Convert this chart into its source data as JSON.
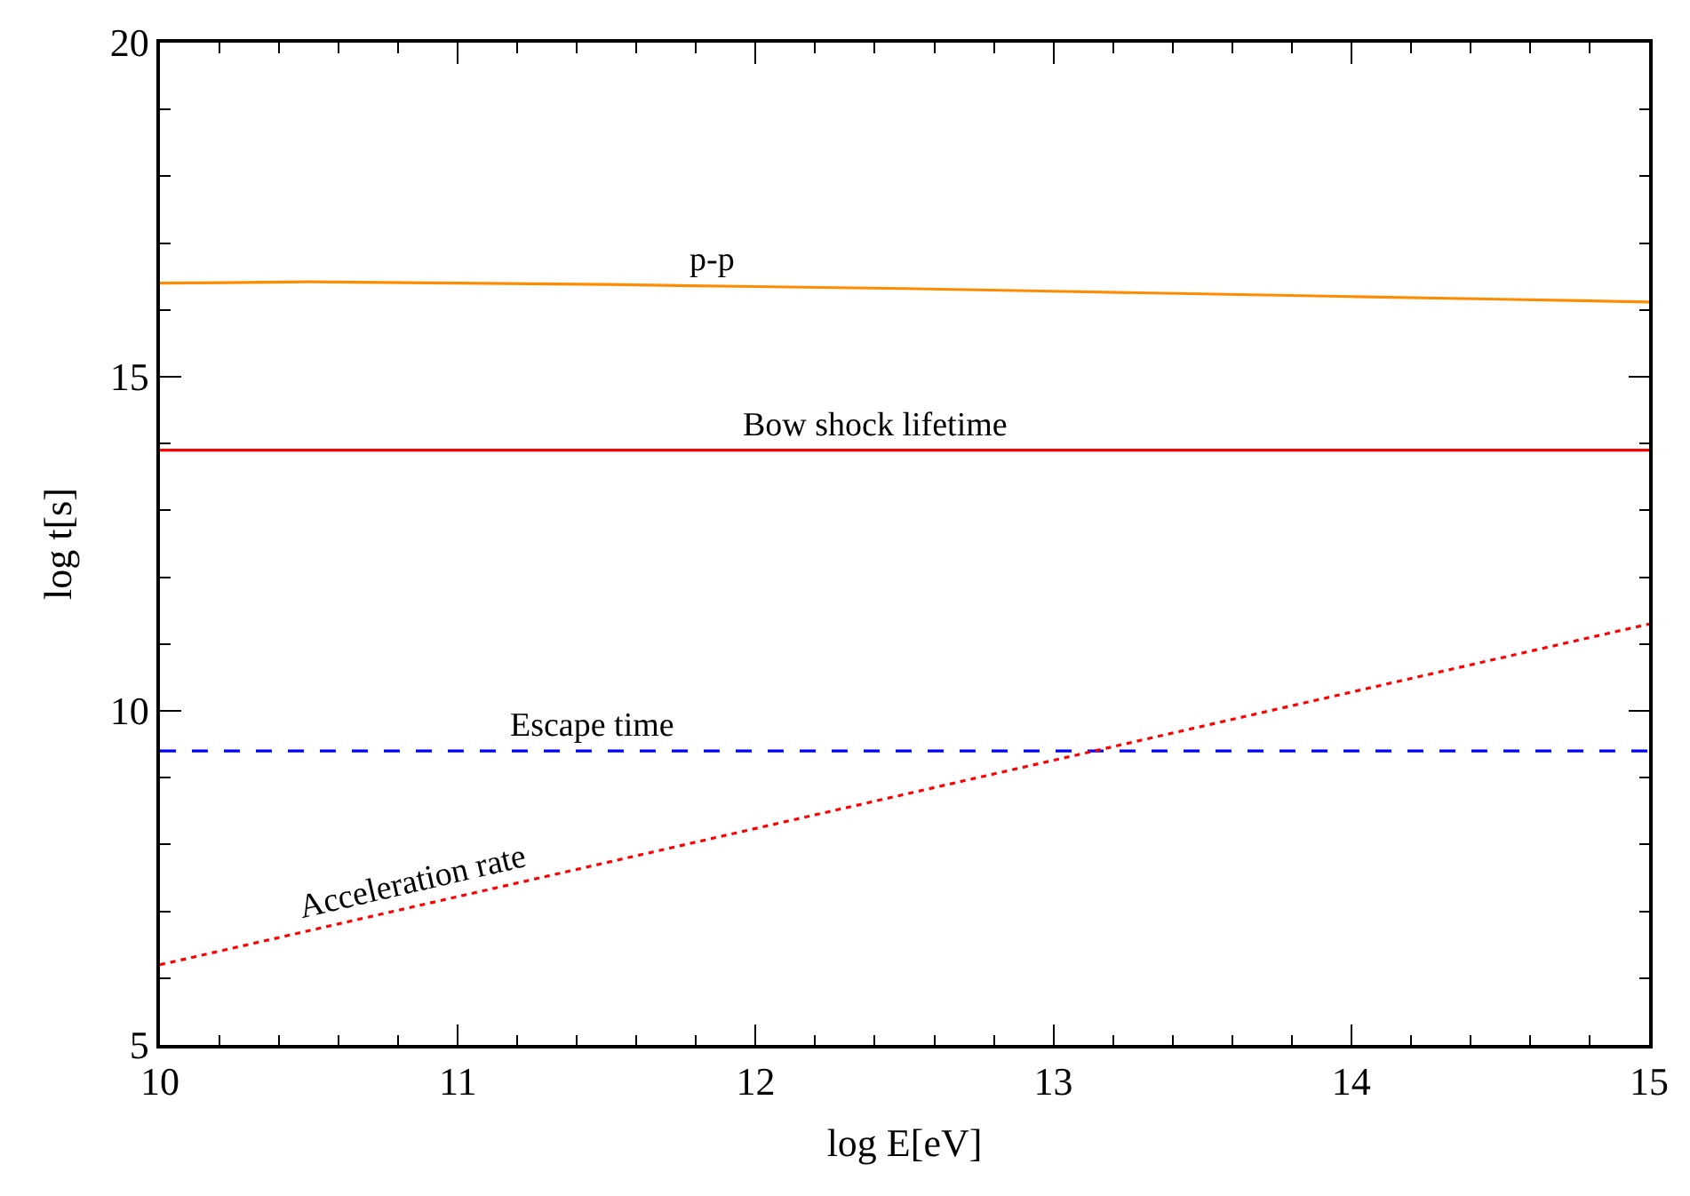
{
  "chart_data": {
    "type": "line",
    "xlabel": "log E[eV]",
    "ylabel": "log t[s]",
    "xlim": [
      10,
      15
    ],
    "ylim": [
      5,
      20
    ],
    "xticks": [
      10,
      11,
      12,
      13,
      14,
      15
    ],
    "yticks": [
      5,
      10,
      15,
      20
    ],
    "legend": false,
    "series": [
      {
        "name": "p-p",
        "x": [
          10,
          10.5,
          11,
          11.5,
          12,
          12.5,
          13,
          13.5,
          14,
          14.5,
          15
        ],
        "values": [
          16.4,
          16.42,
          16.4,
          16.38,
          16.35,
          16.32,
          16.28,
          16.24,
          16.2,
          16.16,
          16.12
        ],
        "color": "#ff8c00",
        "line_style": "solid"
      },
      {
        "name": "Bow shock lifetime",
        "x": [
          10,
          15
        ],
        "values": [
          13.9,
          13.9
        ],
        "color": "#ff0000",
        "line_style": "solid"
      },
      {
        "name": "Escape time",
        "x": [
          10,
          15
        ],
        "values": [
          9.4,
          9.4
        ],
        "color": "#0000ff",
        "line_style": "dashed"
      },
      {
        "name": "Acceleration rate",
        "x": [
          10,
          15
        ],
        "values": [
          6.2,
          11.3
        ],
        "color": "#ff0000",
        "line_style": "dotted"
      }
    ]
  }
}
